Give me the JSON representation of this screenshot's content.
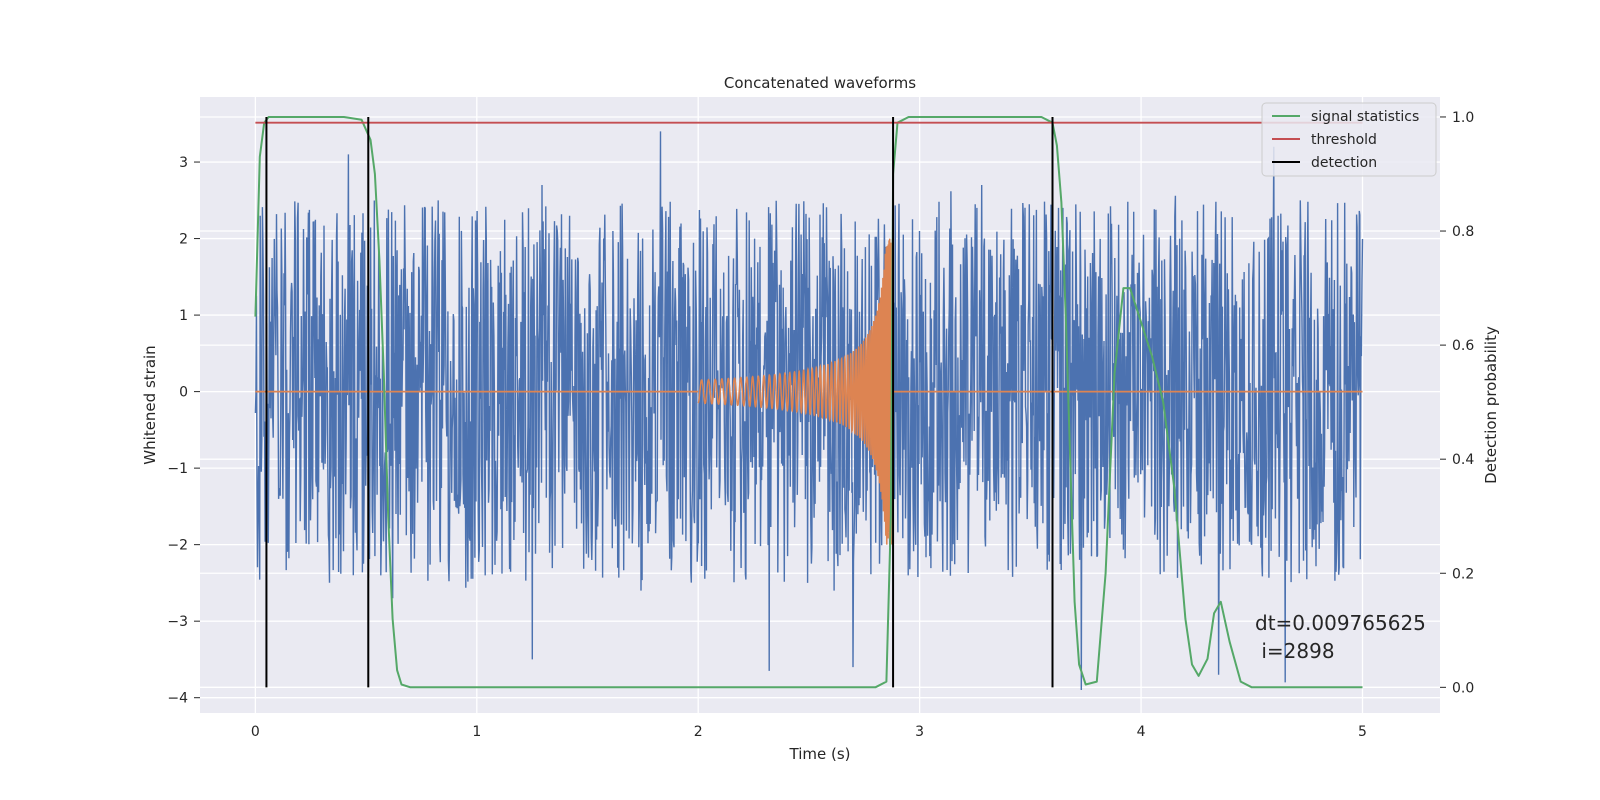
{
  "chart_data": {
    "type": "line",
    "title": "Concatenated waveforms",
    "xlabel": "Time (s)",
    "ylabel": "Whitened strain",
    "y2label": "Detection probability",
    "xlim": [
      -0.25,
      5.35
    ],
    "ylim": [
      -4.2,
      3.85
    ],
    "y2lim": [
      -0.045,
      1.035
    ],
    "xticks": [
      0,
      1,
      2,
      3,
      4,
      5
    ],
    "yticks": [
      -4,
      -3,
      -2,
      -1,
      0,
      1,
      2,
      3
    ],
    "y2ticks": [
      0.0,
      0.2,
      0.4,
      0.6,
      0.8,
      1.0
    ],
    "ytick_labels": [
      "−4",
      "−3",
      "−2",
      "−1",
      "0",
      "1",
      "2",
      "3"
    ],
    "y2tick_labels": [
      "0.0",
      "0.2",
      "0.4",
      "0.6",
      "0.8",
      "1.0"
    ],
    "grid": true,
    "legend_placement": "top-right",
    "colors": {
      "strain": "#4c72b0",
      "template": "#dd8452",
      "signal_statistics": "#55a868",
      "threshold": "#c44e52",
      "detection": "#000000",
      "background": "#eaeaf2",
      "grid": "#ffffff"
    },
    "series": [
      {
        "name": "signal statistics",
        "axis": "right",
        "x": [
          0.0,
          0.02,
          0.04,
          0.06,
          0.08,
          0.1,
          0.2,
          0.3,
          0.4,
          0.48,
          0.52,
          0.54,
          0.56,
          0.58,
          0.6,
          0.62,
          0.64,
          0.66,
          0.7,
          1.0,
          2.0,
          2.5,
          2.8,
          2.85,
          2.87,
          2.88,
          2.9,
          2.95,
          3.0,
          3.3,
          3.55,
          3.6,
          3.62,
          3.64,
          3.66,
          3.68,
          3.7,
          3.72,
          3.75,
          3.8,
          3.84,
          3.88,
          3.92,
          3.95,
          4.0,
          4.05,
          4.1,
          4.15,
          4.2,
          4.23,
          4.26,
          4.3,
          4.33,
          4.36,
          4.4,
          4.45,
          4.5,
          4.7,
          5.0
        ],
        "y": [
          0.65,
          0.93,
          0.99,
          1.0,
          1.0,
          1.0,
          1.0,
          1.0,
          1.0,
          0.995,
          0.96,
          0.9,
          0.75,
          0.55,
          0.3,
          0.12,
          0.03,
          0.005,
          0.0,
          0.0,
          0.0,
          0.0,
          0.0,
          0.01,
          0.3,
          0.9,
          0.99,
          1.0,
          1.0,
          1.0,
          1.0,
          0.99,
          0.95,
          0.85,
          0.65,
          0.4,
          0.15,
          0.04,
          0.005,
          0.01,
          0.2,
          0.55,
          0.7,
          0.7,
          0.64,
          0.58,
          0.5,
          0.35,
          0.12,
          0.04,
          0.02,
          0.05,
          0.13,
          0.15,
          0.08,
          0.01,
          0.0,
          0.0,
          0.0
        ]
      },
      {
        "name": "threshold",
        "axis": "right",
        "x": [
          0.0,
          5.0
        ],
        "y": [
          0.99,
          0.99
        ]
      },
      {
        "name": "detection",
        "axis": "right",
        "type": "vlines",
        "x": [
          0.05,
          0.51,
          2.88,
          3.6
        ],
        "ymin": 0.0,
        "ymax": 1.0
      }
    ],
    "strain_series": {
      "axis": "left",
      "x_range": [
        0.0,
        5.0
      ],
      "typical_range": [
        -2.0,
        2.0
      ],
      "extremes": [
        [
          0.42,
          3.1
        ],
        [
          1.83,
          3.4
        ],
        [
          4.6,
          3.2
        ],
        [
          1.25,
          -3.5
        ],
        [
          2.32,
          -3.65
        ],
        [
          3.73,
          -3.9
        ],
        [
          4.65,
          -3.8
        ],
        [
          4.35,
          -3.7
        ],
        [
          0.62,
          -2.7
        ],
        [
          2.7,
          -3.6
        ]
      ]
    },
    "template_series": {
      "axis": "left",
      "start": 2.0,
      "merger": 2.88,
      "peak_amplitude": 2.0,
      "initial_amplitude": 0.15
    },
    "annotations": [
      "dt=0.009765625",
      " i=2898"
    ],
    "legend": [
      "signal statistics",
      "threshold",
      "detection"
    ]
  }
}
